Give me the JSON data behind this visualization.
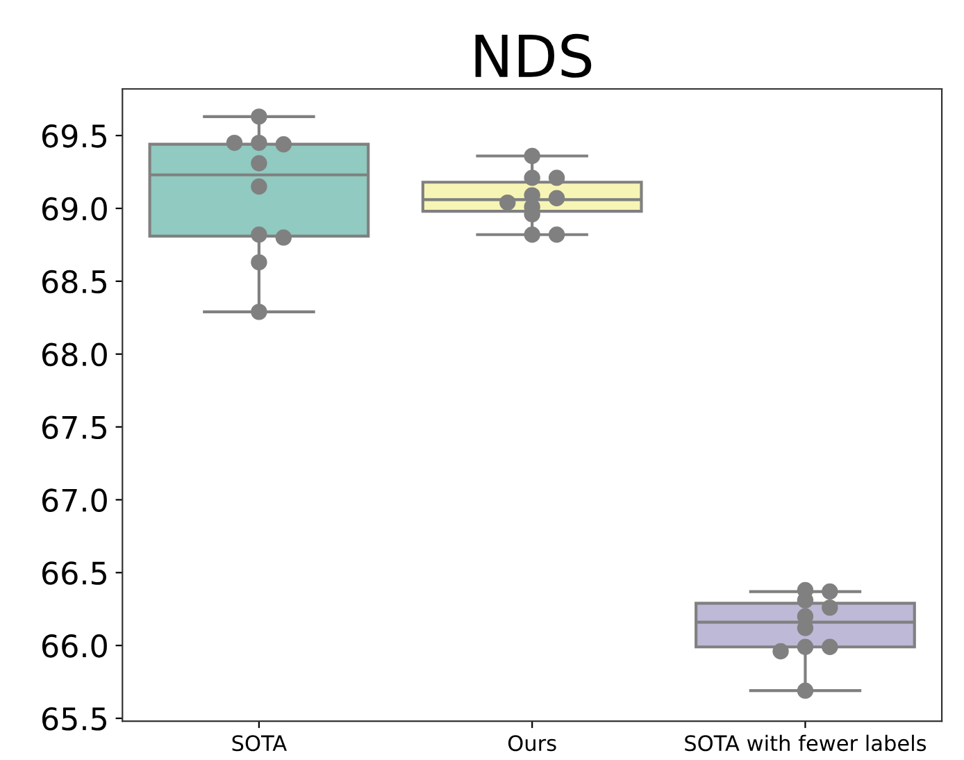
{
  "chart_data": {
    "type": "box",
    "title": "NDS",
    "categories": [
      "SOTA",
      "Ours",
      "SOTA with fewer labels"
    ],
    "colors": [
      "#90cac0",
      "#f7f5b5",
      "#bdb9d6"
    ],
    "boxes": [
      {
        "low": 68.29,
        "q1": 68.81,
        "median": 69.23,
        "q3": 69.44,
        "high": 69.63
      },
      {
        "low": 68.82,
        "q1": 68.98,
        "median": 69.06,
        "q3": 69.18,
        "high": 69.36
      },
      {
        "low": 65.69,
        "q1": 65.99,
        "median": 66.16,
        "q3": 66.29,
        "high": 66.37
      }
    ],
    "series": [
      {
        "type": "scatter",
        "color": "#808080",
        "x": [
          "SOTA",
          "SOTA",
          "SOTA",
          "SOTA",
          "SOTA",
          "SOTA",
          "SOTA",
          "SOTA",
          "SOTA",
          "SOTA",
          "Ours",
          "Ours",
          "Ours",
          "Ours",
          "Ours",
          "Ours",
          "Ours",
          "Ours",
          "Ours",
          "Ours",
          "SOTA with fewer labels",
          "SOTA with fewer labels",
          "SOTA with fewer labels",
          "SOTA with fewer labels",
          "SOTA with fewer labels",
          "SOTA with fewer labels",
          "SOTA with fewer labels",
          "SOTA with fewer labels",
          "SOTA with fewer labels",
          "SOTA with fewer labels"
        ],
        "values": [
          69.63,
          69.45,
          69.44,
          69.45,
          69.31,
          69.15,
          68.82,
          68.8,
          68.63,
          68.29,
          69.36,
          69.21,
          69.21,
          69.09,
          69.07,
          69.04,
          69.01,
          68.96,
          68.82,
          68.82,
          66.38,
          66.37,
          66.31,
          66.26,
          66.2,
          66.12,
          65.99,
          65.99,
          65.96,
          65.69
        ]
      }
    ],
    "ylim": [
      65.48,
      69.82
    ],
    "yticks": [
      65.5,
      {
        "value": 66,
        "label": "66.0"
      },
      66.5,
      {
        "value": 67,
        "label": "67.0"
      },
      67.5,
      {
        "value": 68,
        "label": "68.0"
      },
      68.5,
      {
        "value": 69,
        "label": "69.0"
      },
      69.5
    ],
    "grid": false,
    "legend": false
  }
}
